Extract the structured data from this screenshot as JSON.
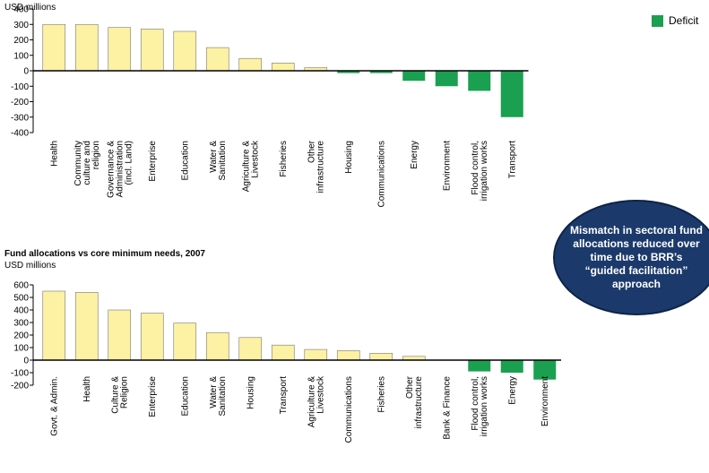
{
  "legend": {
    "label": "Deficit",
    "color": "#1aa050"
  },
  "callout": {
    "text": "Mismatch in sectoral fund allocations reduced over time due to BRR’s “guided facilitation” approach"
  },
  "colors": {
    "surplus": "#fdf1a4",
    "deficit": "#1aa050",
    "edge": "#333333"
  },
  "chart_data": [
    {
      "type": "bar",
      "title": "",
      "ylabel": "USD millions",
      "ylim": [
        -400,
        400
      ],
      "yticks": [
        400,
        300,
        200,
        100,
        0,
        -100,
        -200,
        -300,
        -400
      ],
      "categories": [
        "Health",
        "Community culture and religion",
        "Governance & Administration (incl. Land)",
        "Enterprise",
        "Education",
        "Water & Sanitation",
        "Agriculture & Livestock",
        "Fisheries",
        "Other infrastructure",
        "Housing",
        "Communications",
        "Energy",
        "Environment",
        "Flood control, irrigation works",
        "Transport"
      ],
      "values": [
        300,
        300,
        280,
        270,
        255,
        150,
        80,
        50,
        20,
        -15,
        -15,
        -65,
        -100,
        -130,
        -300
      ]
    },
    {
      "type": "bar",
      "title": "Fund allocations vs core minimum needs, 2007",
      "ylabel": "USD millions",
      "ylim": [
        -200,
        600
      ],
      "yticks": [
        600,
        500,
        400,
        300,
        200,
        100,
        0,
        -100,
        -200
      ],
      "categories": [
        "Govt. & Admin.",
        "Health",
        "Culture & Religion",
        "Enterprise",
        "Education",
        "Water & Sanitation",
        "Housing",
        "Transport",
        "Agriculture & Livestock",
        "Communications",
        "Fisheries",
        "Other infrastructure",
        "Bank & Finance",
        "Flood control, irrigation works",
        "Energy",
        "Environment"
      ],
      "values": [
        550,
        540,
        400,
        375,
        295,
        220,
        180,
        120,
        85,
        75,
        55,
        30,
        0,
        -90,
        -100,
        -155
      ]
    }
  ]
}
